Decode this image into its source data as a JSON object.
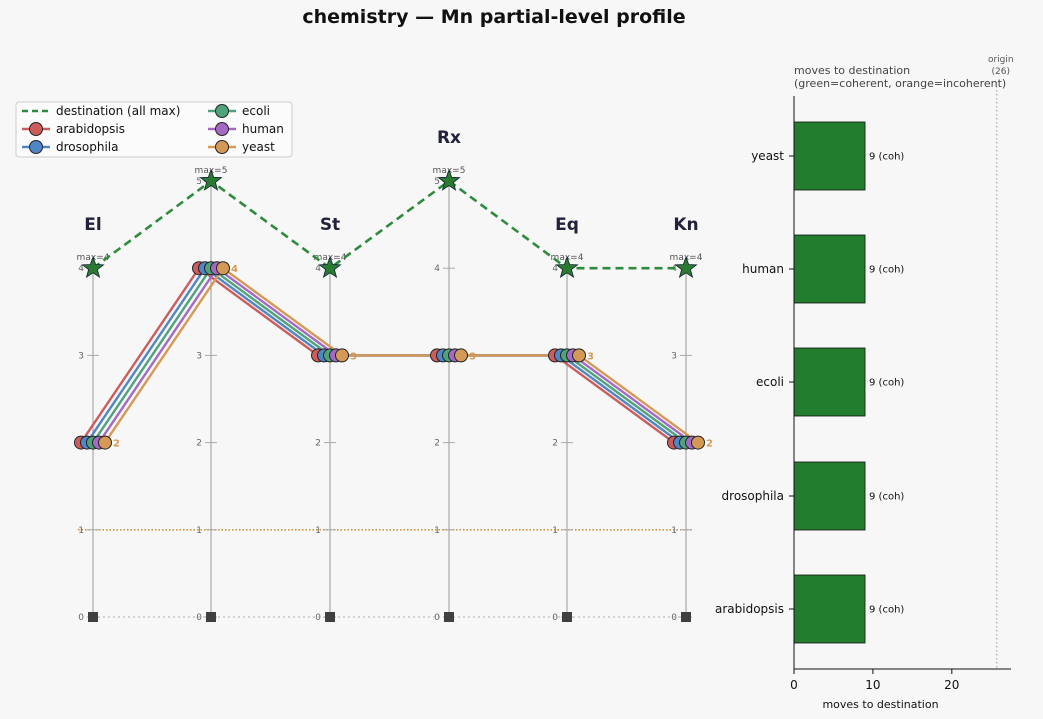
{
  "title": "chemistry — Mn partial-level profile",
  "chart_data": [
    {
      "type": "line",
      "axes": [
        {
          "name": "El",
          "max": 4,
          "max_label": "max=4"
        },
        {
          "name": "",
          "max": 5,
          "max_label": "max=5"
        },
        {
          "name": "St",
          "max": 4,
          "max_label": "max=4"
        },
        {
          "name": "Rx",
          "max": 5,
          "max_label": "max=5"
        },
        {
          "name": "Eq",
          "max": 4,
          "max_label": "max=4"
        },
        {
          "name": "Kn",
          "max": 4,
          "max_label": "max=4"
        }
      ],
      "y_ticks": [
        "0",
        "1",
        "2",
        "3",
        "4",
        "5"
      ],
      "destination": {
        "name": "destination (all max)",
        "values": [
          4,
          5,
          4,
          5,
          4,
          4
        ],
        "color": "#2e8b3e"
      },
      "origin_values": [
        0,
        0,
        0,
        0,
        0,
        0
      ],
      "reference_line_level": 1,
      "series": [
        {
          "name": "arabidopsis",
          "values": [
            2,
            4,
            3,
            3,
            3,
            2
          ],
          "color": "#cd5c5c"
        },
        {
          "name": "drosophila",
          "values": [
            2,
            4,
            3,
            3,
            3,
            2
          ],
          "color": "#4f86c6"
        },
        {
          "name": "ecoli",
          "values": [
            2,
            4,
            3,
            3,
            3,
            2
          ],
          "color": "#4fa37a"
        },
        {
          "name": "human",
          "values": [
            2,
            4,
            3,
            3,
            3,
            2
          ],
          "color": "#a569c4"
        },
        {
          "name": "yeast",
          "values": [
            2,
            4,
            3,
            3,
            3,
            2
          ],
          "color": "#d49a55"
        }
      ],
      "end_labels": [
        "2",
        "4",
        "3",
        "3",
        "3",
        "2"
      ],
      "legend": "top-left"
    },
    {
      "type": "bar",
      "orientation": "horizontal",
      "title": "moves to destination",
      "subtitle": "(green=coherent, orange=incoherent)",
      "xlabel": "moves to destination",
      "categories": [
        "yeast",
        "human",
        "ecoli",
        "drosophila",
        "arabidopsis"
      ],
      "values": [
        9,
        9,
        9,
        9,
        9
      ],
      "value_labels": [
        "9  (coh)",
        "9  (coh)",
        "9  (coh)",
        "9  (coh)",
        "9  (coh)"
      ],
      "bar_color": "#237d2e",
      "xlim": [
        0,
        27.5
      ],
      "x_ticks": [
        "0",
        "10",
        "20"
      ],
      "origin_line": {
        "value": 25.7,
        "label": "origin",
        "sublabel": "(26)"
      }
    }
  ]
}
